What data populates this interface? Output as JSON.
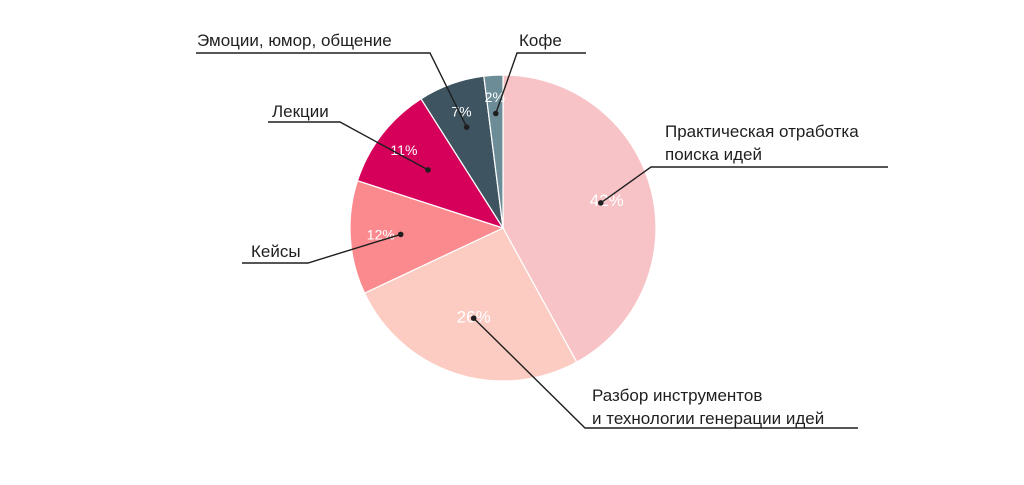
{
  "chart_data": {
    "type": "pie",
    "slices": [
      {
        "label": "Практическая отработка поиска идей",
        "label_lines": [
          "Практическая отработка",
          "поиска идей"
        ],
        "value": 42,
        "value_label": "42%",
        "color": "#f7c3c6"
      },
      {
        "label": "Разбор инструментов и технологии генерации идей",
        "label_lines": [
          "Разбор инструментов",
          "и технологии генерации идей"
        ],
        "value": 26,
        "value_label": "26%",
        "color": "#fcccc3"
      },
      {
        "label": "Кейсы",
        "label_lines": [
          "Кейсы"
        ],
        "value": 12,
        "value_label": "12%",
        "color": "#fb8a8e"
      },
      {
        "label": "Лекции",
        "label_lines": [
          "Лекции"
        ],
        "value": 11,
        "value_label": "11%",
        "color": "#d6005b"
      },
      {
        "label": "Эмоции, юмор, общение",
        "label_lines": [
          "Эмоции, юмор, общение"
        ],
        "value": 7,
        "value_label": "7%",
        "color": "#3e5561"
      },
      {
        "label": "Кофе",
        "label_lines": [
          "Кофе"
        ],
        "value": 2,
        "value_label": "2%",
        "color": "#6c8d98"
      }
    ],
    "legend": "none"
  }
}
